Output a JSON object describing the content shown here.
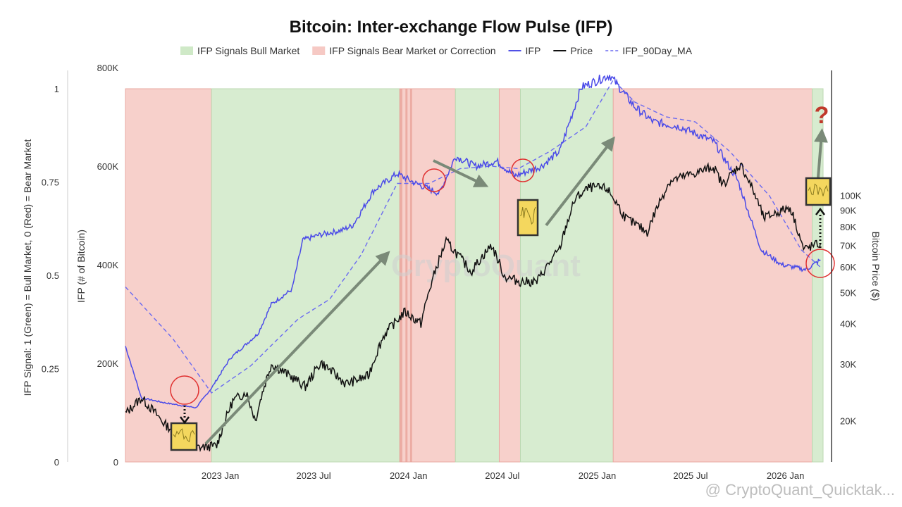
{
  "chart_data": {
    "type": "line",
    "title": "Bitcoin: Inter-exchange Flow Pulse (IFP)",
    "legend": [
      {
        "label": "IFP Signals Bull Market",
        "kind": "band",
        "color": "#cfe9c7"
      },
      {
        "label": "IFP Signals Bear Market or Correction",
        "kind": "band",
        "color": "#f6c9c4"
      },
      {
        "label": "IFP",
        "kind": "line",
        "color": "#5050e6"
      },
      {
        "label": "Price",
        "kind": "line",
        "color": "#111111"
      },
      {
        "label": "IFP_90Day_MA",
        "kind": "dashed",
        "color": "#6b6bf0"
      }
    ],
    "left_axis": {
      "title": "IFP Signal: 1 (Green) = Bull Market, 0 (Red) = Bear Market",
      "ticks": [
        "0",
        "0.25",
        "0.5",
        "0.75",
        "1"
      ],
      "range": [
        0,
        1
      ]
    },
    "ifp_axis": {
      "title": "IFP (# of Bitcoin)",
      "ticks": [
        "0",
        "200K",
        "400K",
        "600K",
        "800K"
      ],
      "range": [
        0,
        800000
      ]
    },
    "right_axis": {
      "title": "Bitcoin Price ($)",
      "scale": "log",
      "ticks": [
        "20K",
        "30K",
        "40K",
        "50K",
        "60K",
        "70K",
        "80K",
        "90K",
        "100K"
      ]
    },
    "x_ticks": [
      "2023 Jan",
      "2023 Jul",
      "2024 Jan",
      "2024 Jul",
      "2025 Jan",
      "2025 Jul",
      "2026 Jan"
    ],
    "x_range": [
      "2022-07-01",
      "2026-03-15"
    ],
    "signal_periods": [
      {
        "start": "2022-07-01",
        "end": "2022-12-15",
        "signal": 0
      },
      {
        "start": "2022-12-15",
        "end": "2023-12-15",
        "signal": 1
      },
      {
        "start": "2023-12-15",
        "end": "2024-04-01",
        "signal": 0
      },
      {
        "start": "2024-04-01",
        "end": "2024-06-25",
        "signal": 1
      },
      {
        "start": "2024-06-25",
        "end": "2024-08-05",
        "signal": 0
      },
      {
        "start": "2024-08-05",
        "end": "2025-02-01",
        "signal": 1
      },
      {
        "start": "2025-02-01",
        "end": "2026-02-22",
        "signal": 0
      },
      {
        "start": "2026-02-22",
        "end": "2026-03-15",
        "signal": 1
      }
    ],
    "series": [
      {
        "name": "IFP",
        "unit": "BTC",
        "points": [
          [
            "2022-07-01",
            235000
          ],
          [
            "2022-08-01",
            130000
          ],
          [
            "2022-09-15",
            120000
          ],
          [
            "2022-11-15",
            110000
          ],
          [
            "2022-12-15",
            150000
          ],
          [
            "2023-01-20",
            210000
          ],
          [
            "2023-03-15",
            260000
          ],
          [
            "2023-04-10",
            320000
          ],
          [
            "2023-05-20",
            350000
          ],
          [
            "2023-06-10",
            450000
          ],
          [
            "2023-07-10",
            460000
          ],
          [
            "2023-08-25",
            470000
          ],
          [
            "2023-09-15",
            480000
          ],
          [
            "2023-10-25",
            550000
          ],
          [
            "2023-12-10",
            585000
          ],
          [
            "2024-01-15",
            565000
          ],
          [
            "2024-03-01",
            545000
          ],
          [
            "2024-04-01",
            620000
          ],
          [
            "2024-05-10",
            600000
          ],
          [
            "2024-06-20",
            610000
          ],
          [
            "2024-07-25",
            580000
          ],
          [
            "2024-09-15",
            600000
          ],
          [
            "2024-10-20",
            630000
          ],
          [
            "2024-12-01",
            760000
          ],
          [
            "2025-01-25",
            785000
          ],
          [
            "2025-03-15",
            720000
          ],
          [
            "2025-04-20",
            690000
          ],
          [
            "2025-06-10",
            680000
          ],
          [
            "2025-08-15",
            650000
          ],
          [
            "2025-10-01",
            570000
          ],
          [
            "2025-11-15",
            430000
          ],
          [
            "2025-12-25",
            400000
          ],
          [
            "2026-02-10",
            390000
          ],
          [
            "2026-03-10",
            410000
          ]
        ]
      },
      {
        "name": "IFP_90Day_MA",
        "unit": "BTC",
        "points": [
          [
            "2022-07-01",
            355000
          ],
          [
            "2022-10-01",
            250000
          ],
          [
            "2022-12-15",
            140000
          ],
          [
            "2023-03-01",
            195000
          ],
          [
            "2023-06-01",
            290000
          ],
          [
            "2023-08-01",
            330000
          ],
          [
            "2023-10-01",
            420000
          ],
          [
            "2023-12-10",
            565000
          ],
          [
            "2024-02-10",
            565000
          ],
          [
            "2024-04-10",
            595000
          ],
          [
            "2024-06-10",
            600000
          ],
          [
            "2024-08-01",
            595000
          ],
          [
            "2024-10-01",
            630000
          ],
          [
            "2024-12-10",
            680000
          ],
          [
            "2025-02-01",
            775000
          ],
          [
            "2025-03-15",
            730000
          ],
          [
            "2025-05-15",
            700000
          ],
          [
            "2025-07-10",
            690000
          ],
          [
            "2025-09-15",
            630000
          ],
          [
            "2025-12-01",
            540000
          ],
          [
            "2026-02-01",
            430000
          ],
          [
            "2026-03-10",
            395000
          ]
        ]
      },
      {
        "name": "Price",
        "unit": "USD",
        "points": [
          [
            "2022-07-01",
            21000
          ],
          [
            "2022-08-01",
            23500
          ],
          [
            "2022-09-15",
            19500
          ],
          [
            "2022-11-15",
            16500
          ],
          [
            "2022-12-25",
            16700
          ],
          [
            "2023-01-25",
            23000
          ],
          [
            "2023-02-20",
            24500
          ],
          [
            "2023-03-10",
            20000
          ],
          [
            "2023-04-10",
            30000
          ],
          [
            "2023-06-15",
            25500
          ],
          [
            "2023-07-15",
            30300
          ],
          [
            "2023-09-01",
            26000
          ],
          [
            "2023-10-15",
            27500
          ],
          [
            "2023-11-15",
            37000
          ],
          [
            "2023-12-25",
            43500
          ],
          [
            "2024-01-25",
            40000
          ],
          [
            "2024-03-14",
            72000
          ],
          [
            "2024-05-01",
            58000
          ],
          [
            "2024-06-10",
            70000
          ],
          [
            "2024-07-05",
            56000
          ],
          [
            "2024-08-05",
            54000
          ],
          [
            "2024-09-06",
            54000
          ],
          [
            "2024-10-20",
            68000
          ],
          [
            "2024-11-20",
            98000
          ],
          [
            "2024-12-17",
            106000
          ],
          [
            "2025-01-20",
            105000
          ],
          [
            "2025-02-25",
            85000
          ],
          [
            "2025-04-08",
            77000
          ],
          [
            "2025-05-22",
            111000
          ],
          [
            "2025-07-15",
            118000
          ],
          [
            "2025-08-14",
            123000
          ],
          [
            "2025-09-01",
            108000
          ],
          [
            "2025-10-06",
            125000
          ],
          [
            "2025-11-20",
            85000
          ],
          [
            "2026-01-10",
            92000
          ],
          [
            "2026-02-05",
            68000
          ],
          [
            "2026-03-10",
            71000
          ]
        ]
      }
    ],
    "annotations": {
      "watermark": "CryptoQuant",
      "footer": "@ CryptoQuant_Quicktak..."
    }
  }
}
